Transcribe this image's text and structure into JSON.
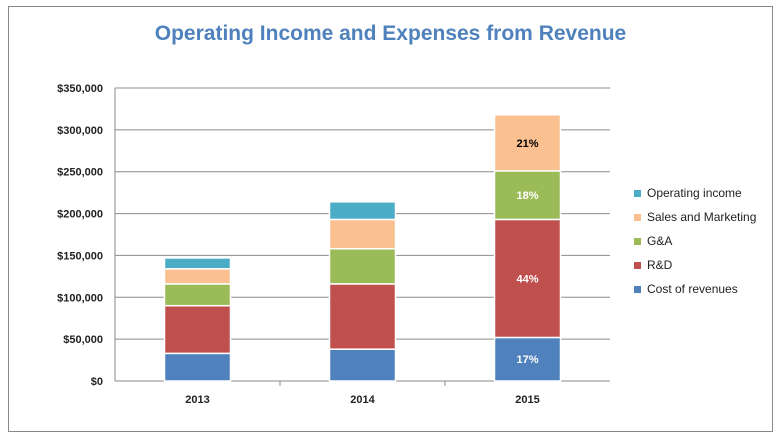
{
  "chart_data": {
    "type": "bar",
    "stacked": true,
    "title": "Operating Income and Expenses from Revenue",
    "categories": [
      "2013",
      "2014",
      "2015"
    ],
    "ylim": [
      0,
      350000
    ],
    "yticks": [
      "$0",
      "$50,000",
      "$100,000",
      "$150,000",
      "$200,000",
      "$250,000",
      "$300,000",
      "$350,000"
    ],
    "grid": true,
    "legend": "right",
    "series": [
      {
        "name": "Cost of revenues",
        "color": "#4f81bd",
        "values": [
          33000,
          38000,
          52000
        ],
        "labels": [
          "",
          "",
          "17%"
        ]
      },
      {
        "name": "R&D",
        "color": "#c0504d",
        "values": [
          57000,
          78000,
          141000
        ],
        "labels": [
          "",
          "",
          "44%"
        ]
      },
      {
        "name": "G&A",
        "color": "#9bbb59",
        "values": [
          26000,
          42000,
          58000
        ],
        "labels": [
          "",
          "",
          "18%"
        ]
      },
      {
        "name": "Sales and Marketing",
        "color": "#fac090",
        "values": [
          18000,
          35000,
          67000
        ],
        "labels": [
          "",
          "",
          "21%"
        ]
      },
      {
        "name": "Operating income",
        "color": "#4bacc6",
        "values": [
          13000,
          21000,
          0
        ],
        "labels": [
          "",
          "",
          ""
        ]
      }
    ]
  }
}
